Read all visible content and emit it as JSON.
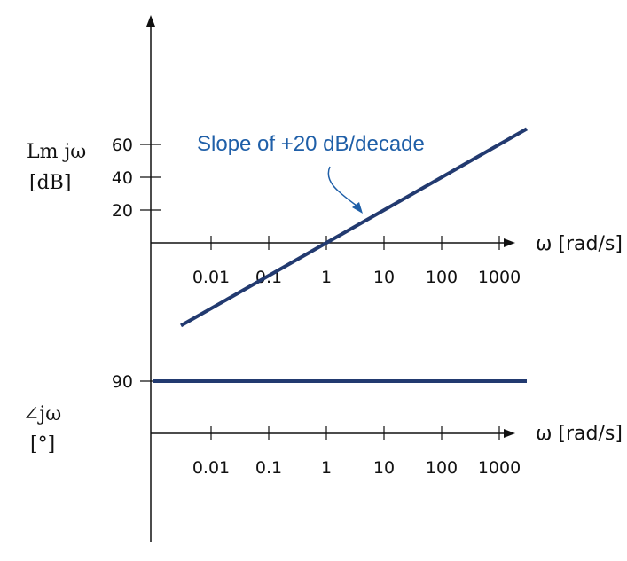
{
  "chart_data": [
    {
      "type": "line",
      "title": "",
      "ylabel_line1": "Lm jω",
      "ylabel_line2": "[dB]",
      "xlabel": "ω [rad/s]",
      "xscale": "log",
      "x_ticks": [
        0.01,
        0.1,
        1,
        10,
        100,
        1000
      ],
      "x_tick_labels": [
        "0.01",
        "0.1",
        "1",
        "10",
        "100",
        "1000"
      ],
      "y_ticks": [
        20,
        40,
        60
      ],
      "y_tick_labels": [
        "20",
        "40",
        "60"
      ],
      "series": [
        {
          "x": [
            0.003,
            3000
          ],
          "y": [
            -50.5,
            69.5
          ],
          "color": "#223a70"
        }
      ],
      "annotation": {
        "text": "Slope of +20 dB/decade",
        "color": "#1f5fa8"
      }
    },
    {
      "type": "line",
      "title": "",
      "ylabel_line1": "∠jω",
      "ylabel_line2": "[°]",
      "xlabel": "ω [rad/s]",
      "xscale": "log",
      "x_ticks": [
        0.01,
        0.1,
        1,
        10,
        100,
        1000
      ],
      "x_tick_labels": [
        "0.01",
        "0.1",
        "1",
        "10",
        "100",
        "1000"
      ],
      "y_ticks": [
        90
      ],
      "y_tick_labels": [
        "90"
      ],
      "series": [
        {
          "x": [
            0.001,
            3000
          ],
          "y": [
            90,
            90
          ],
          "color": "#223a70"
        }
      ]
    }
  ]
}
